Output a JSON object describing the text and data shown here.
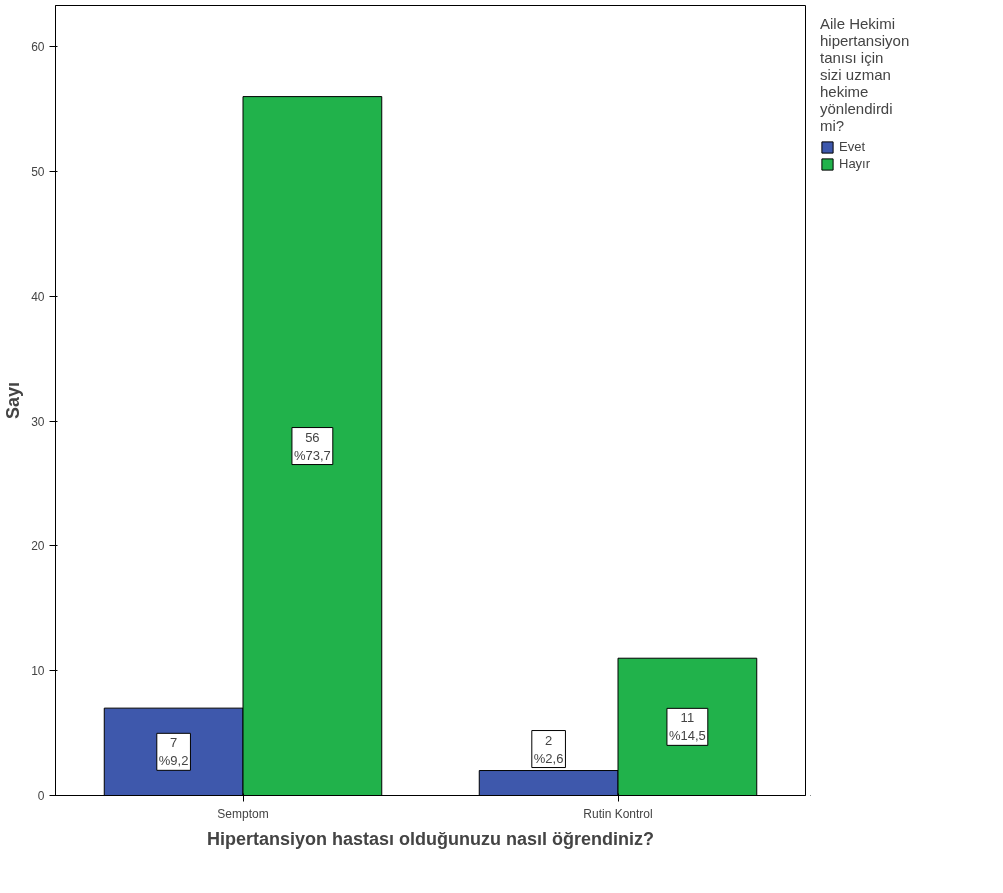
{
  "chart_data": {
    "type": "bar",
    "xlabel": "Hipertansiyon hastası olduğunuzu nasıl öğrendiniz?",
    "ylabel": "Sayı",
    "legend_title": "Aile Hekimi hipertansiyon tanısı için sizi uzman hekime yönlendirdi mi?",
    "categories": [
      "Semptom",
      "Rutin Kontrol"
    ],
    "series": [
      {
        "name": "Evet",
        "color": "#3e58ac",
        "values": [
          7,
          2
        ],
        "value_labels": [
          "7\n%9,2",
          "2\n%2,6"
        ]
      },
      {
        "name": "Hayır",
        "color": "#21b24b",
        "values": [
          56,
          11
        ],
        "value_labels": [
          "56\n%73,7",
          "11\n%14,5"
        ]
      }
    ],
    "ylim": [
      0,
      63.3
    ],
    "yticks": [
      0,
      10,
      20,
      30,
      40,
      50,
      60
    ],
    "grid": false,
    "legend": "right"
  }
}
